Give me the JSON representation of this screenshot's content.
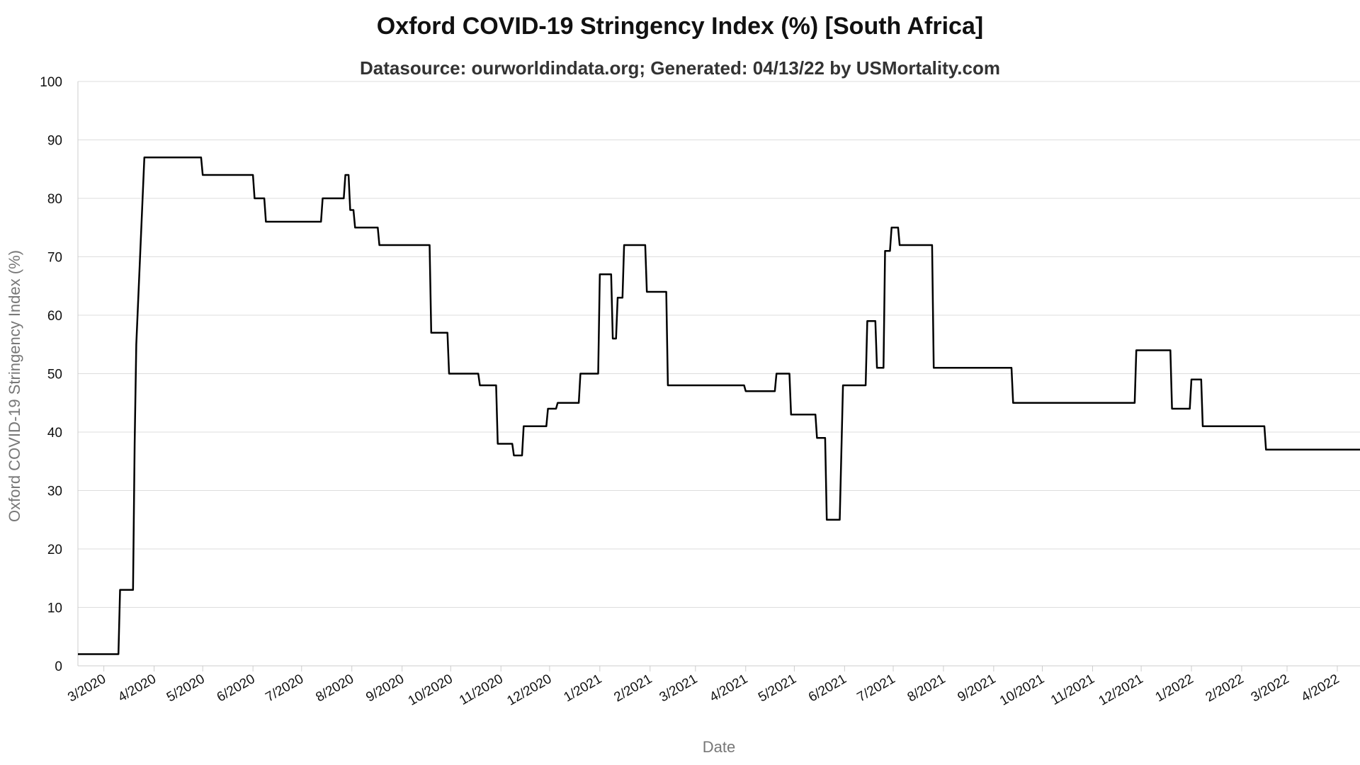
{
  "chart_data": {
    "type": "line",
    "title": "Oxford COVID-19 Stringency Index (%) [South Africa]",
    "subtitle": "Datasource: ourworldindata.org; Generated: 04/13/22 by USMortality.com",
    "xlabel": "Date",
    "ylabel": "Oxford COVID-19 Stringency Index (%)",
    "ylim": [
      0,
      100
    ],
    "yticks": [
      0,
      10,
      20,
      30,
      40,
      50,
      60,
      70,
      80,
      90,
      100
    ],
    "xlim": [
      "2020-02-14",
      "2022-04-15"
    ],
    "xticks": [
      {
        "date": "2020-03-01",
        "label": "3/2020"
      },
      {
        "date": "2020-04-01",
        "label": "4/2020"
      },
      {
        "date": "2020-05-01",
        "label": "5/2020"
      },
      {
        "date": "2020-06-01",
        "label": "6/2020"
      },
      {
        "date": "2020-07-01",
        "label": "7/2020"
      },
      {
        "date": "2020-08-01",
        "label": "8/2020"
      },
      {
        "date": "2020-09-01",
        "label": "9/2020"
      },
      {
        "date": "2020-10-01",
        "label": "10/2020"
      },
      {
        "date": "2020-11-01",
        "label": "11/2020"
      },
      {
        "date": "2020-12-01",
        "label": "12/2020"
      },
      {
        "date": "2021-01-01",
        "label": "1/2021"
      },
      {
        "date": "2021-02-01",
        "label": "2/2021"
      },
      {
        "date": "2021-03-01",
        "label": "3/2021"
      },
      {
        "date": "2021-04-01",
        "label": "4/2021"
      },
      {
        "date": "2021-05-01",
        "label": "5/2021"
      },
      {
        "date": "2021-06-01",
        "label": "6/2021"
      },
      {
        "date": "2021-07-01",
        "label": "7/2021"
      },
      {
        "date": "2021-08-01",
        "label": "8/2021"
      },
      {
        "date": "2021-09-01",
        "label": "9/2021"
      },
      {
        "date": "2021-10-01",
        "label": "10/2021"
      },
      {
        "date": "2021-11-01",
        "label": "11/2021"
      },
      {
        "date": "2021-12-01",
        "label": "12/2021"
      },
      {
        "date": "2022-01-01",
        "label": "1/2022"
      },
      {
        "date": "2022-02-01",
        "label": "2/2022"
      },
      {
        "date": "2022-03-01",
        "label": "3/2022"
      },
      {
        "date": "2022-04-01",
        "label": "4/2022"
      }
    ],
    "grid": true,
    "line_color": "#000000",
    "series": [
      {
        "points": [
          [
            "2020-02-14",
            2
          ],
          [
            "2020-03-10",
            2
          ],
          [
            "2020-03-11",
            13
          ],
          [
            "2020-03-19",
            13
          ],
          [
            "2020-03-20",
            38
          ],
          [
            "2020-03-21",
            55
          ],
          [
            "2020-03-26",
            87
          ],
          [
            "2020-04-30",
            87
          ],
          [
            "2020-05-01",
            84
          ],
          [
            "2020-06-01",
            84
          ],
          [
            "2020-06-02",
            80
          ],
          [
            "2020-06-08",
            80
          ],
          [
            "2020-06-09",
            76
          ],
          [
            "2020-07-13",
            76
          ],
          [
            "2020-07-14",
            80
          ],
          [
            "2020-07-27",
            80
          ],
          [
            "2020-07-28",
            84
          ],
          [
            "2020-07-30",
            84
          ],
          [
            "2020-07-31",
            78
          ],
          [
            "2020-08-02",
            78
          ],
          [
            "2020-08-03",
            75
          ],
          [
            "2020-08-17",
            75
          ],
          [
            "2020-08-18",
            72
          ],
          [
            "2020-09-18",
            72
          ],
          [
            "2020-09-19",
            57
          ],
          [
            "2020-09-29",
            57
          ],
          [
            "2020-09-30",
            50
          ],
          [
            "2020-10-18",
            50
          ],
          [
            "2020-10-19",
            48
          ],
          [
            "2020-10-29",
            48
          ],
          [
            "2020-10-30",
            38
          ],
          [
            "2020-11-08",
            38
          ],
          [
            "2020-11-09",
            36
          ],
          [
            "2020-11-14",
            36
          ],
          [
            "2020-11-15",
            41
          ],
          [
            "2020-11-29",
            41
          ],
          [
            "2020-11-30",
            44
          ],
          [
            "2020-12-05",
            44
          ],
          [
            "2020-12-06",
            45
          ],
          [
            "2020-12-19",
            45
          ],
          [
            "2020-12-20",
            50
          ],
          [
            "2020-12-31",
            50
          ],
          [
            "2021-01-01",
            67
          ],
          [
            "2021-01-08",
            67
          ],
          [
            "2021-01-09",
            56
          ],
          [
            "2021-01-11",
            56
          ],
          [
            "2021-01-12",
            63
          ],
          [
            "2021-01-15",
            63
          ],
          [
            "2021-01-16",
            72
          ],
          [
            "2021-01-29",
            72
          ],
          [
            "2021-01-30",
            64
          ],
          [
            "2021-02-11",
            64
          ],
          [
            "2021-02-12",
            48
          ],
          [
            "2021-03-31",
            48
          ],
          [
            "2021-04-01",
            47
          ],
          [
            "2021-04-19",
            47
          ],
          [
            "2021-04-20",
            50
          ],
          [
            "2021-04-28",
            50
          ],
          [
            "2021-04-29",
            43
          ],
          [
            "2021-05-14",
            43
          ],
          [
            "2021-05-15",
            39
          ],
          [
            "2021-05-20",
            39
          ],
          [
            "2021-05-21",
            25
          ],
          [
            "2021-05-29",
            25
          ],
          [
            "2021-05-31",
            48
          ],
          [
            "2021-06-14",
            48
          ],
          [
            "2021-06-15",
            59
          ],
          [
            "2021-06-20",
            59
          ],
          [
            "2021-06-21",
            51
          ],
          [
            "2021-06-25",
            51
          ],
          [
            "2021-06-26",
            71
          ],
          [
            "2021-06-29",
            71
          ],
          [
            "2021-06-30",
            75
          ],
          [
            "2021-07-04",
            75
          ],
          [
            "2021-07-05",
            72
          ],
          [
            "2021-07-25",
            72
          ],
          [
            "2021-07-26",
            51
          ],
          [
            "2021-09-12",
            51
          ],
          [
            "2021-09-13",
            45
          ],
          [
            "2021-11-27",
            45
          ],
          [
            "2021-11-28",
            54
          ],
          [
            "2021-12-19",
            54
          ],
          [
            "2021-12-20",
            44
          ],
          [
            "2021-12-31",
            44
          ],
          [
            "2022-01-01",
            49
          ],
          [
            "2022-01-07",
            49
          ],
          [
            "2022-01-08",
            41
          ],
          [
            "2022-02-15",
            41
          ],
          [
            "2022-02-16",
            37
          ],
          [
            "2022-04-15",
            37
          ]
        ]
      }
    ]
  }
}
